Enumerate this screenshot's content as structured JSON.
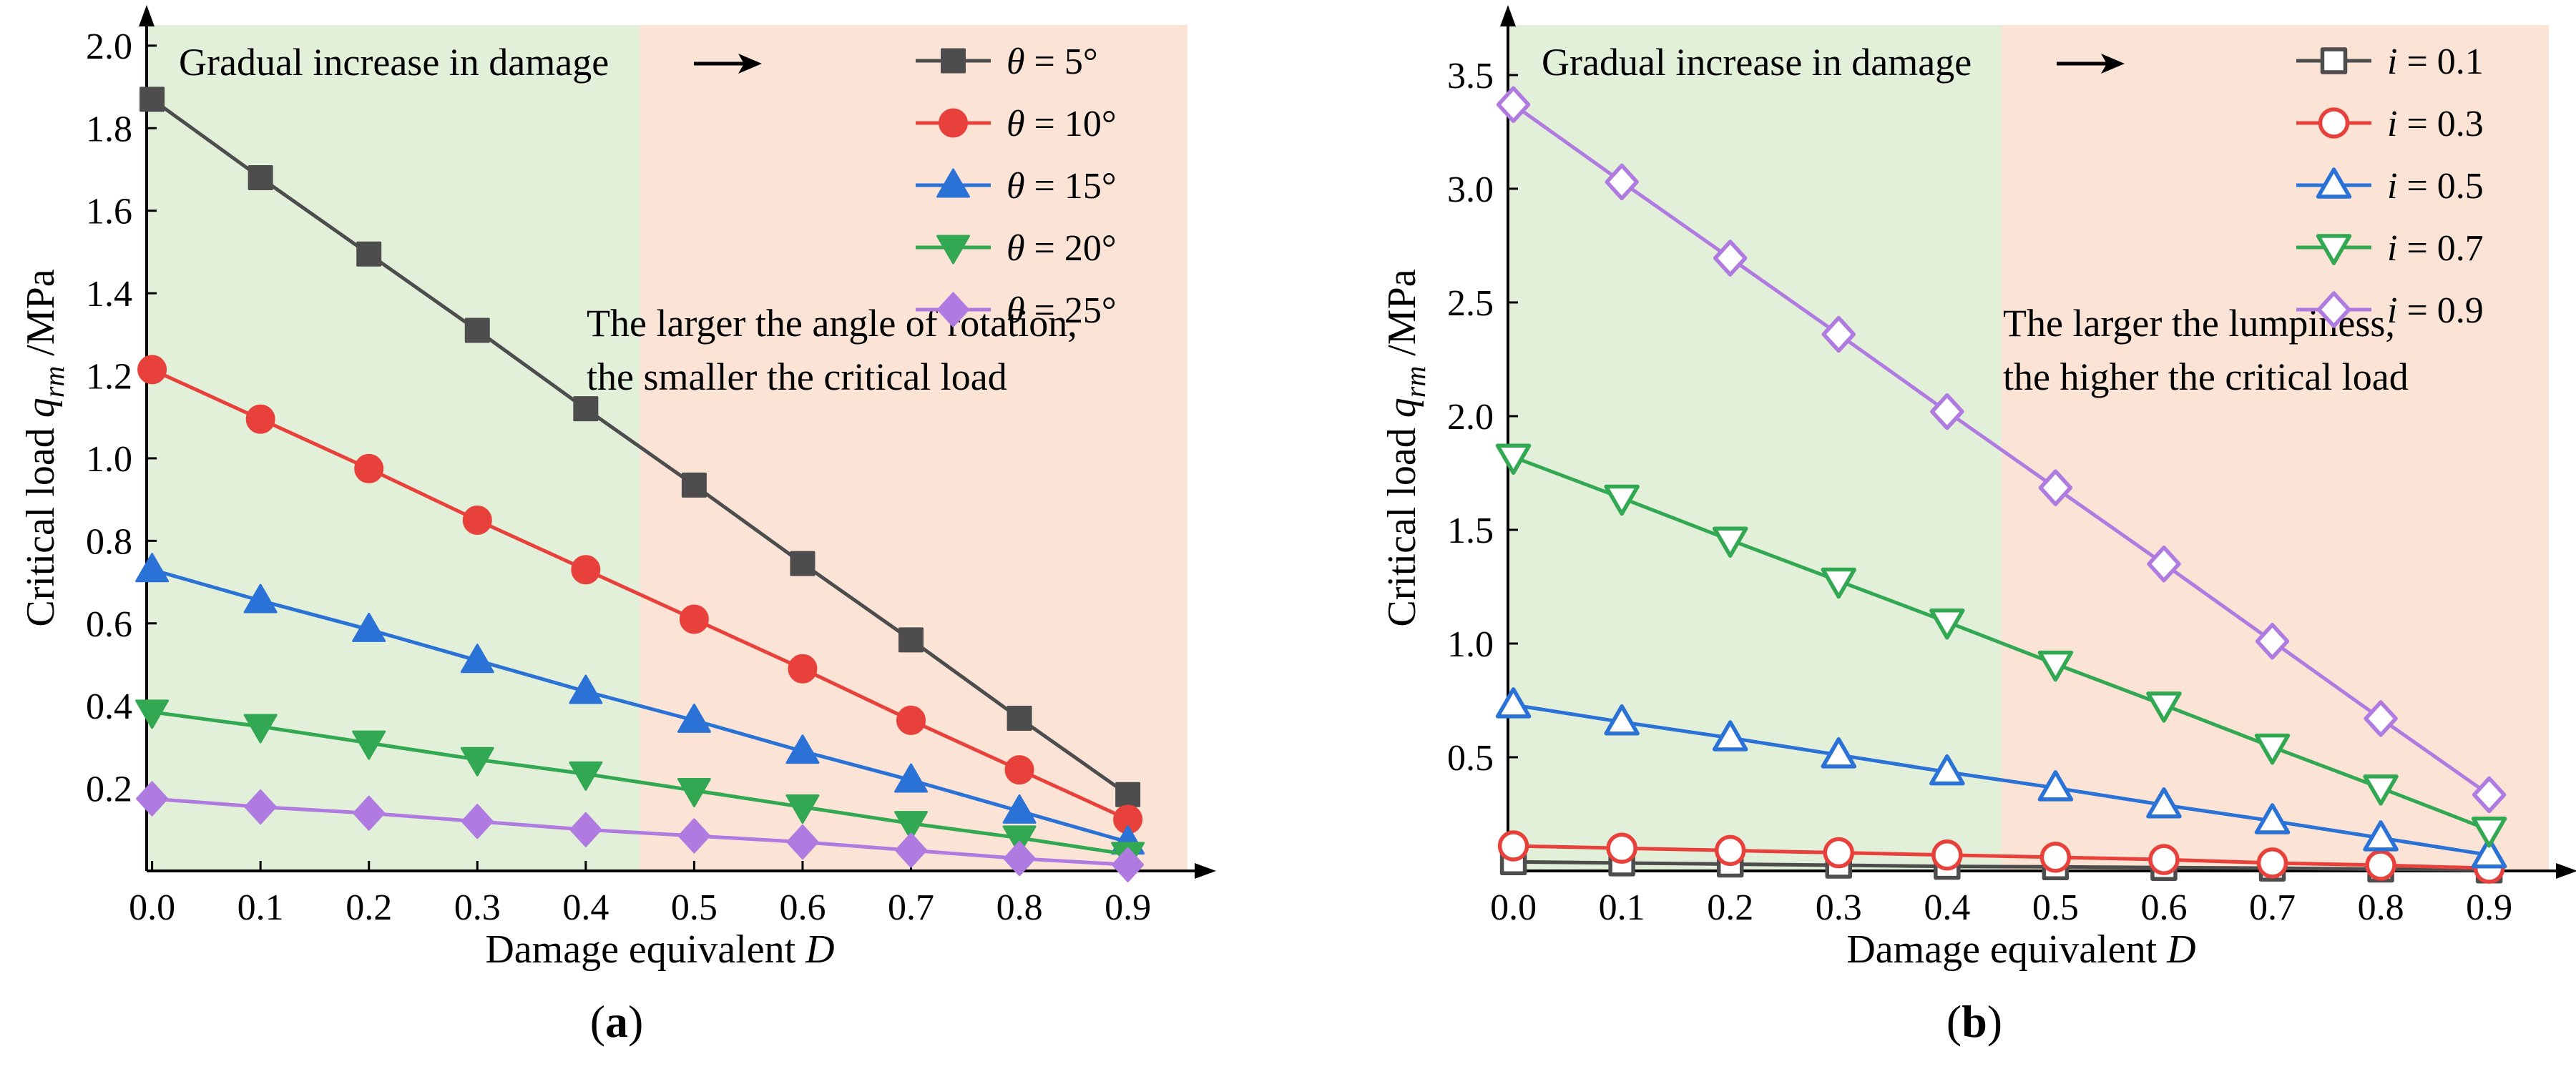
{
  "chart_data": [
    {
      "type": "line",
      "panel": "a",
      "panel_label": {
        "open": "(",
        "letter": "a",
        "close": ")"
      },
      "x": [
        0.0,
        0.1,
        0.2,
        0.3,
        0.4,
        0.5,
        0.6,
        0.7,
        0.8,
        0.9
      ],
      "xlim": [
        -0.005,
        0.955
      ],
      "ylim": [
        0.0,
        2.05
      ],
      "xticks": [
        "0.0",
        "0.1",
        "0.2",
        "0.3",
        "0.4",
        "0.5",
        "0.6",
        "0.7",
        "0.8",
        "0.9"
      ],
      "yticks": [
        "0.2",
        "0.4",
        "0.6",
        "0.8",
        "1.0",
        "1.2",
        "1.4",
        "1.6",
        "1.8",
        "2.0"
      ],
      "xlabel": {
        "text": "Damage equivalent ",
        "var": "D"
      },
      "ylabel": {
        "text": "Critical load ",
        "var": "q",
        "sub": "rm",
        "unit": " /MPa"
      },
      "regions": [
        {
          "from": -0.005,
          "to": 0.45,
          "color": "#e2efd9"
        },
        {
          "from": 0.45,
          "to": 0.955,
          "color": "#fbe4d6"
        }
      ],
      "annotation_top": "Gradual increase in damage",
      "annotation_lines": [
        "The larger the angle of rotation,",
        "the smaller the critical load"
      ],
      "legend_var": "θ",
      "legend_position": "top-right",
      "marker_fill": "solid",
      "series": [
        {
          "name": "θ = 5°",
          "label": "= 5°",
          "color": "#4d4d4d",
          "marker": "square",
          "values": [
            1.87,
            1.68,
            1.495,
            1.31,
            1.12,
            0.935,
            0.745,
            0.56,
            0.37,
            0.185
          ]
        },
        {
          "name": "θ = 10°",
          "label": "= 10°",
          "color": "#e8403a",
          "marker": "circle",
          "values": [
            1.215,
            1.095,
            0.975,
            0.85,
            0.73,
            0.61,
            0.49,
            0.365,
            0.245,
            0.125
          ]
        },
        {
          "name": "θ = 15°",
          "label": "= 15°",
          "color": "#2b72d7",
          "marker": "triangle-up",
          "values": [
            0.73,
            0.655,
            0.585,
            0.51,
            0.435,
            0.365,
            0.29,
            0.22,
            0.145,
            0.07
          ]
        },
        {
          "name": "θ = 20°",
          "label": "= 20°",
          "color": "#32a852",
          "marker": "triangle-down",
          "values": [
            0.385,
            0.35,
            0.31,
            0.27,
            0.235,
            0.195,
            0.155,
            0.115,
            0.08,
            0.04
          ]
        },
        {
          "name": "θ = 25°",
          "label": "= 25°",
          "color": "#b07be0",
          "marker": "diamond",
          "values": [
            0.175,
            0.155,
            0.14,
            0.12,
            0.1,
            0.085,
            0.07,
            0.05,
            0.03,
            0.015
          ]
        }
      ]
    },
    {
      "type": "line",
      "panel": "b",
      "panel_label": {
        "open": "(",
        "letter": "b",
        "close": ")"
      },
      "x": [
        0.0,
        0.1,
        0.2,
        0.3,
        0.4,
        0.5,
        0.6,
        0.7,
        0.8,
        0.9
      ],
      "xlim": [
        -0.005,
        0.955
      ],
      "ylim": [
        0.0,
        3.72
      ],
      "xticks": [
        "0.0",
        "0.1",
        "0.2",
        "0.3",
        "0.4",
        "0.5",
        "0.6",
        "0.7",
        "0.8",
        "0.9"
      ],
      "yticks": [
        "0.5",
        "1.0",
        "1.5",
        "2.0",
        "2.5",
        "3.0",
        "3.5"
      ],
      "xlabel": {
        "text": "Damage equivalent ",
        "var": "D"
      },
      "ylabel": {
        "text": "Critical load ",
        "var": "q",
        "sub": "rm",
        "unit": " /MPa"
      },
      "regions": [
        {
          "from": -0.005,
          "to": 0.45,
          "color": "#e2efd9"
        },
        {
          "from": 0.45,
          "to": 0.955,
          "color": "#fbe4d6"
        }
      ],
      "annotation_top": "Gradual increase in damage",
      "annotation_lines": [
        "The larger the lumpiness,",
        "the higher the critical load"
      ],
      "legend_var": "i",
      "legend_position": "top-right",
      "marker_fill": "hollow",
      "series": [
        {
          "name": "i = 0.1",
          "label": "= 0.1",
          "color": "#4d4d4d",
          "marker": "square",
          "values": [
            0.04,
            0.035,
            0.03,
            0.025,
            0.02,
            0.018,
            0.015,
            0.012,
            0.008,
            0.004
          ]
        },
        {
          "name": "i = 0.3",
          "label": "= 0.3",
          "color": "#e8403a",
          "marker": "circle",
          "values": [
            0.11,
            0.1,
            0.09,
            0.08,
            0.07,
            0.06,
            0.05,
            0.035,
            0.025,
            0.012
          ]
        },
        {
          "name": "i = 0.5",
          "label": "= 0.5",
          "color": "#2b72d7",
          "marker": "triangle-up",
          "values": [
            0.73,
            0.655,
            0.585,
            0.51,
            0.435,
            0.365,
            0.29,
            0.22,
            0.145,
            0.07
          ]
        },
        {
          "name": "i = 0.7",
          "label": "= 0.7",
          "color": "#32a852",
          "marker": "triangle-down",
          "values": [
            1.82,
            1.64,
            1.455,
            1.275,
            1.095,
            0.91,
            0.73,
            0.545,
            0.365,
            0.18
          ]
        },
        {
          "name": "i = 0.9",
          "label": "= 0.9",
          "color": "#b07be0",
          "marker": "diamond",
          "values": [
            3.37,
            3.03,
            2.695,
            2.36,
            2.02,
            1.685,
            1.35,
            1.01,
            0.67,
            0.335
          ]
        }
      ]
    }
  ]
}
